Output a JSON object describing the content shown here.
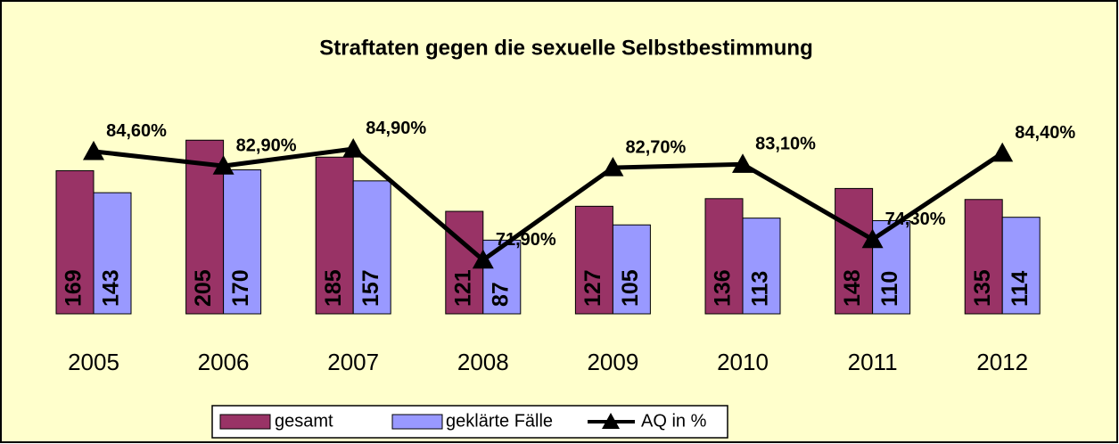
{
  "chart_data": {
    "type": "bar_line",
    "title": "Straftaten gegen die sexuelle Selbstbestimmung",
    "categories": [
      "2005",
      "2006",
      "2007",
      "2008",
      "2009",
      "2010",
      "2011",
      "2012"
    ],
    "series": [
      {
        "name": "gesamt",
        "color": "#993366",
        "values": [
          169,
          205,
          185,
          121,
          127,
          136,
          148,
          135
        ]
      },
      {
        "name": "geklärte Fälle",
        "color": "#9999ff",
        "values": [
          143,
          170,
          157,
          87,
          105,
          113,
          110,
          114
        ]
      },
      {
        "name": "AQ in %",
        "color": "#000000",
        "axis": "y2",
        "type": "line",
        "values": [
          84.6,
          82.9,
          84.9,
          71.9,
          82.7,
          83.1,
          74.3,
          84.4
        ],
        "value_labels": [
          "84,60%",
          "82,90%",
          "84,90%",
          "71,90%",
          "82,70%",
          "83,10%",
          "74,30%",
          "84,40%"
        ]
      }
    ],
    "ylim": [
      0,
      220
    ],
    "y2lim": [
      65.6,
      87.4
    ],
    "legend": "bottom"
  }
}
